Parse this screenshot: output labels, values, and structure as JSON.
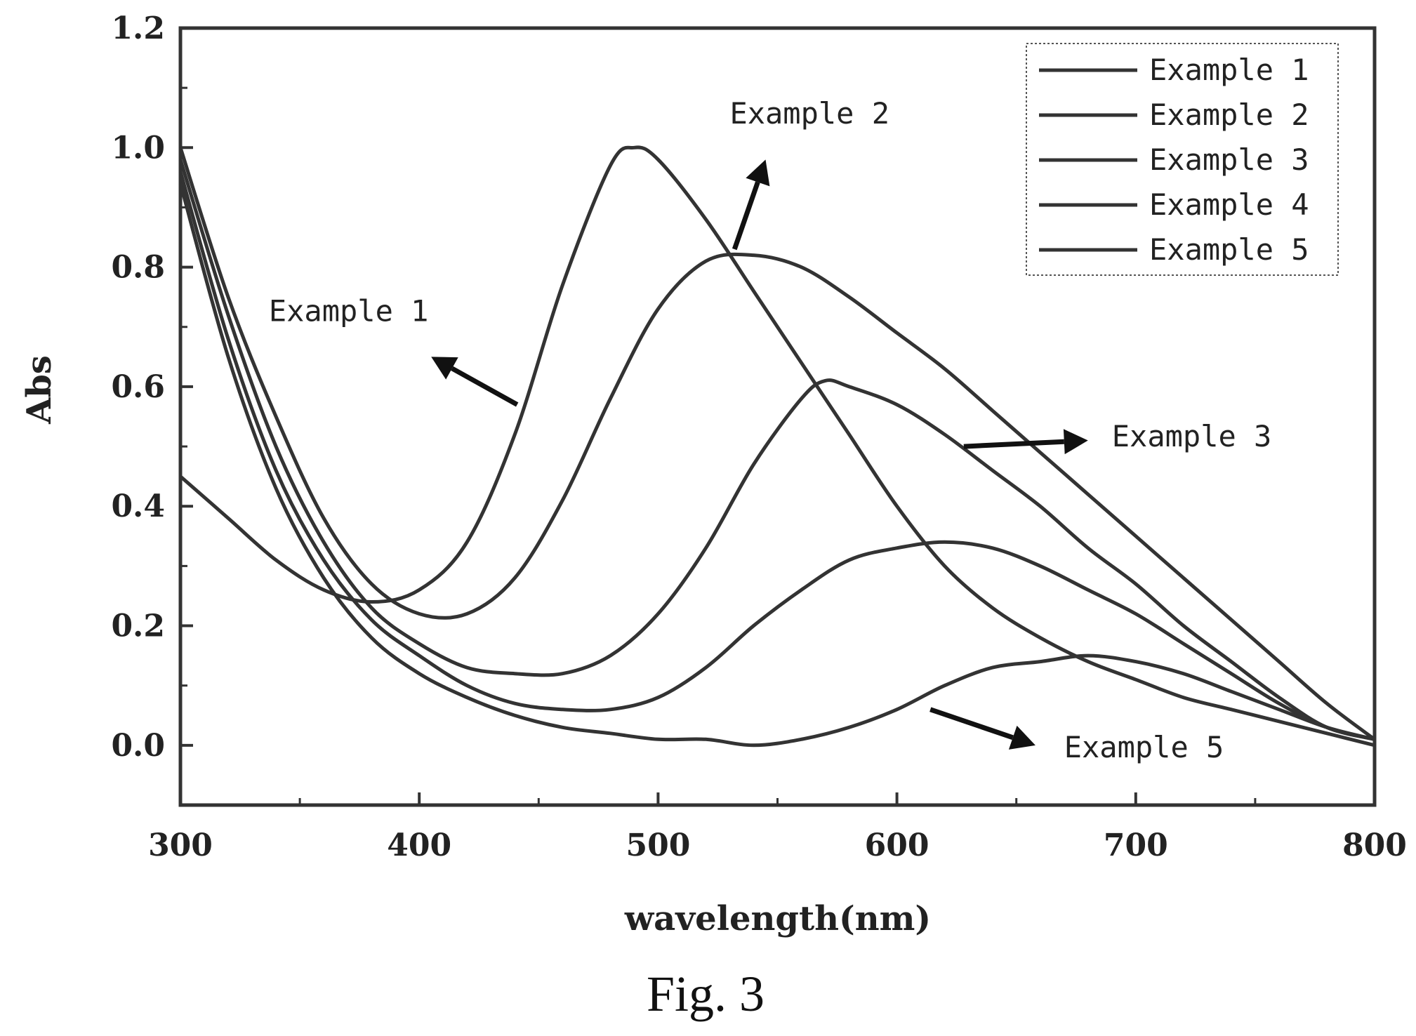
{
  "chart_data": {
    "type": "line",
    "title": "",
    "xlabel": "wavelength(nm)",
    "ylabel": "Abs",
    "xlim": [
      300,
      800
    ],
    "ylim": [
      -0.1,
      1.2
    ],
    "xticks": [
      300,
      400,
      500,
      600,
      700,
      800
    ],
    "yticks": [
      0.0,
      0.2,
      0.4,
      0.6,
      0.8,
      1.0,
      1.2
    ],
    "xtick_labels": [
      "300",
      "400",
      "500",
      "600",
      "700",
      "800"
    ],
    "ytick_labels": [
      "0.0",
      "0.2",
      "0.4",
      "0.6",
      "0.8",
      "1.0",
      "1.2"
    ],
    "grid": false,
    "legend_position": "top-right",
    "line_color": "#333333",
    "series": [
      {
        "name": "Example 1",
        "x": [
          300,
          320,
          340,
          360,
          380,
          400,
          420,
          440,
          460,
          480,
          490,
          500,
          520,
          540,
          560,
          580,
          600,
          620,
          640,
          660,
          680,
          700,
          720,
          740,
          760,
          780,
          800
        ],
        "y": [
          0.45,
          0.38,
          0.31,
          0.26,
          0.24,
          0.26,
          0.34,
          0.52,
          0.77,
          0.97,
          1.0,
          0.98,
          0.88,
          0.76,
          0.64,
          0.52,
          0.4,
          0.3,
          0.23,
          0.18,
          0.14,
          0.11,
          0.08,
          0.06,
          0.04,
          0.02,
          0.0
        ]
      },
      {
        "name": "Example 2",
        "x": [
          300,
          320,
          340,
          360,
          380,
          400,
          420,
          440,
          460,
          480,
          500,
          520,
          540,
          560,
          580,
          600,
          620,
          640,
          660,
          680,
          700,
          720,
          740,
          760,
          780,
          800
        ],
        "y": [
          1.0,
          0.75,
          0.55,
          0.38,
          0.27,
          0.22,
          0.22,
          0.28,
          0.41,
          0.58,
          0.73,
          0.81,
          0.82,
          0.8,
          0.75,
          0.69,
          0.63,
          0.56,
          0.49,
          0.42,
          0.35,
          0.28,
          0.21,
          0.14,
          0.07,
          0.01
        ]
      },
      {
        "name": "Example 3",
        "x": [
          300,
          320,
          340,
          360,
          380,
          400,
          420,
          440,
          460,
          480,
          500,
          520,
          540,
          560,
          570,
          580,
          600,
          620,
          640,
          660,
          680,
          700,
          720,
          740,
          760,
          780,
          800
        ],
        "y": [
          0.98,
          0.72,
          0.5,
          0.34,
          0.23,
          0.17,
          0.13,
          0.12,
          0.12,
          0.15,
          0.22,
          0.33,
          0.47,
          0.58,
          0.61,
          0.6,
          0.57,
          0.52,
          0.46,
          0.4,
          0.33,
          0.27,
          0.2,
          0.14,
          0.08,
          0.03,
          0.01
        ]
      },
      {
        "name": "Example 4",
        "x": [
          300,
          320,
          340,
          360,
          380,
          400,
          420,
          440,
          460,
          480,
          500,
          520,
          540,
          560,
          580,
          600,
          620,
          640,
          660,
          680,
          700,
          720,
          740,
          760,
          780,
          800
        ],
        "y": [
          0.96,
          0.68,
          0.46,
          0.31,
          0.21,
          0.15,
          0.1,
          0.07,
          0.06,
          0.06,
          0.08,
          0.13,
          0.2,
          0.26,
          0.31,
          0.33,
          0.34,
          0.33,
          0.3,
          0.26,
          0.22,
          0.17,
          0.12,
          0.07,
          0.03,
          0.01
        ]
      },
      {
        "name": "Example 5",
        "x": [
          300,
          320,
          340,
          360,
          380,
          400,
          420,
          440,
          460,
          480,
          500,
          520,
          540,
          560,
          580,
          600,
          620,
          640,
          660,
          680,
          700,
          720,
          740,
          760,
          780,
          800
        ],
        "y": [
          0.94,
          0.65,
          0.43,
          0.28,
          0.18,
          0.12,
          0.08,
          0.05,
          0.03,
          0.02,
          0.01,
          0.01,
          0.0,
          0.01,
          0.03,
          0.06,
          0.1,
          0.13,
          0.14,
          0.15,
          0.14,
          0.12,
          0.09,
          0.06,
          0.03,
          0.01
        ]
      }
    ],
    "annotations": [
      {
        "text": "Example 1",
        "target_series": "Example 1",
        "arrow_from": [
          441,
          0.57
        ],
        "arrow_to": [
          405,
          0.65
        ],
        "label_at": [
          337,
          0.71
        ]
      },
      {
        "text": "Example 2",
        "target_series": "Example 2",
        "arrow_from": [
          532,
          0.83
        ],
        "arrow_to": [
          545,
          0.98
        ],
        "label_at": [
          530,
          1.04
        ]
      },
      {
        "text": "Example 3",
        "target_series": "Example 3",
        "arrow_from": [
          628,
          0.5
        ],
        "arrow_to": [
          680,
          0.51
        ],
        "label_at": [
          690,
          0.5
        ]
      },
      {
        "text": "Example 5",
        "target_series": "Example 5",
        "arrow_from": [
          614,
          0.06
        ],
        "arrow_to": [
          658,
          0.0
        ],
        "label_at": [
          670,
          -0.02
        ]
      }
    ]
  },
  "figure": {
    "caption": "Fig. 3"
  }
}
